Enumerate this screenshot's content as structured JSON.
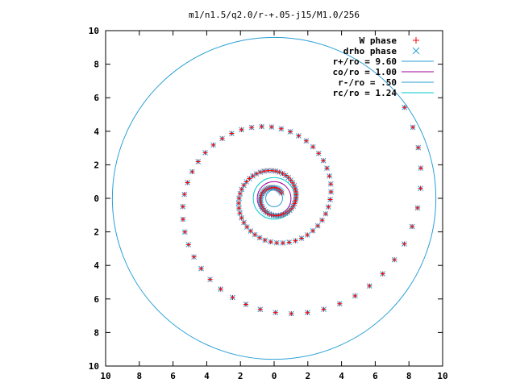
{
  "chart_data": {
    "type": "scatter",
    "title": "m1/n1.5/q2.0/r-+.05-j15/M1.0/256",
    "xlabel": "",
    "ylabel": "",
    "xlim": [
      -10,
      10
    ],
    "ylim": [
      -10,
      10
    ],
    "x_tick_labels": [
      "10",
      "8",
      "6",
      "4",
      "2",
      "0",
      "2",
      "4",
      "6",
      "8",
      "10"
    ],
    "y_tick_labels": [
      "10",
      "8",
      "6",
      "4",
      "2",
      "0",
      "2",
      "4",
      "6",
      "8",
      "10"
    ],
    "x_tick_values": [
      -10,
      -8,
      -6,
      -4,
      -2,
      0,
      2,
      4,
      6,
      8,
      10
    ],
    "y_tick_values": [
      10,
      8,
      6,
      4,
      2,
      0,
      -2,
      -4,
      -6,
      -8,
      -10
    ],
    "grid": false,
    "legend_position": "top-right",
    "spiral": {
      "r_inner": 0.55,
      "r_outer": 9.45,
      "theta_start_deg": 35,
      "turns": 3.0,
      "point_count": 140
    },
    "series": [
      {
        "name": "W phase",
        "marker": "plus",
        "color": "#ff0000"
      },
      {
        "name": "drho phase",
        "marker": "cross",
        "color": "#2a9fd6"
      },
      {
        "name": "r+/ro = 9.60",
        "kind": "circle",
        "radius": 9.6,
        "color": "#2a9fd6"
      },
      {
        "name": "co/ro = 1.00",
        "kind": "circle",
        "radius": 1.0,
        "color": "#a000a0"
      },
      {
        "name": "r-/ro = .50",
        "kind": "circle",
        "radius": 0.5,
        "color": "#2a9fd6"
      },
      {
        "name": "rc/ro = 1.24",
        "kind": "circle",
        "radius": 1.24,
        "color": "#00c8c8"
      }
    ]
  }
}
